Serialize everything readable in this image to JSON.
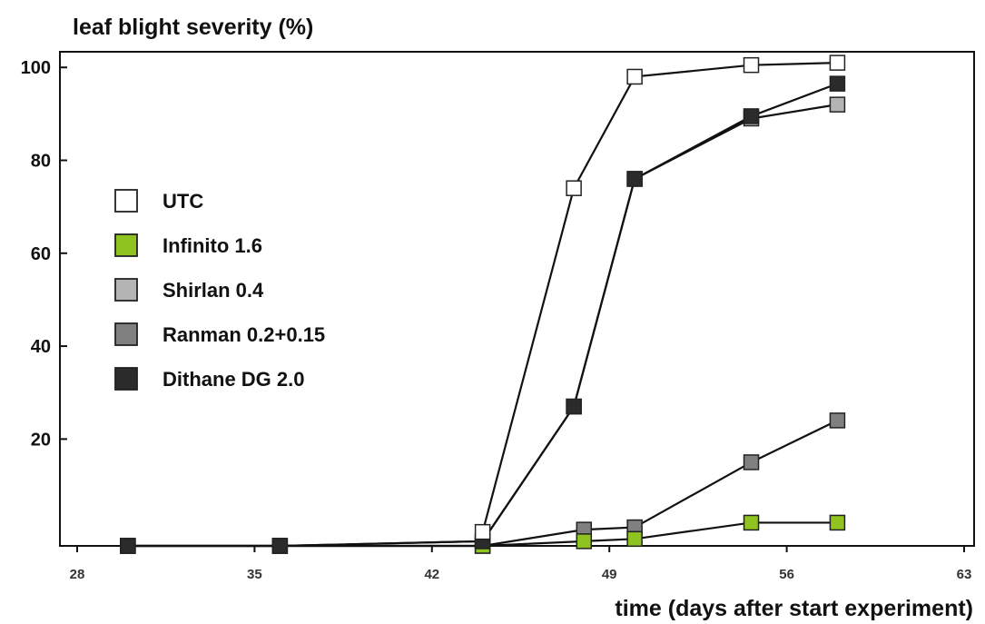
{
  "chart_data": {
    "type": "line",
    "ylabel": "leaf blight severity (%)",
    "xlabel": "time (days after start experiment)",
    "xlim": [
      28,
      63
    ],
    "ylim": [
      -3,
      102
    ],
    "x_ticks": [
      "28",
      "35",
      "42",
      "49",
      "56",
      "63"
    ],
    "y_ticks": [
      "20",
      "40",
      "60",
      "80",
      "100"
    ],
    "grid": false,
    "legend_position": "left-middle",
    "series": [
      {
        "name": "Ranman 0.2+0.15",
        "color": "#808080",
        "points": [
          [
            30,
            -3
          ],
          [
            36,
            -3
          ],
          [
            44,
            -3
          ],
          [
            48,
            0.5
          ],
          [
            50,
            1
          ],
          [
            54.6,
            15
          ],
          [
            58,
            24
          ]
        ]
      },
      {
        "name": "Infinito 1.6",
        "color": "#8fc31f",
        "points": [
          [
            30,
            -3
          ],
          [
            36,
            -3
          ],
          [
            44,
            -3
          ],
          [
            48,
            -2
          ],
          [
            50,
            -1.5
          ],
          [
            54.6,
            2
          ],
          [
            58,
            2
          ]
        ]
      },
      {
        "name": "Shirlan 0.4",
        "color": "#b4b4b4",
        "points": [
          [
            30,
            -3
          ],
          [
            36,
            -3
          ],
          [
            44,
            -2
          ],
          [
            47.6,
            27
          ],
          [
            50,
            76
          ],
          [
            54.6,
            89
          ],
          [
            58,
            92
          ]
        ]
      },
      {
        "name": "Dithane DG 2.0",
        "color": "#2b2b2b",
        "points": [
          [
            30,
            -3
          ],
          [
            36,
            -3
          ],
          [
            44,
            -2
          ],
          [
            47.6,
            27
          ],
          [
            50,
            76
          ],
          [
            54.6,
            89.5
          ],
          [
            58,
            96.5
          ]
        ]
      },
      {
        "name": "UTC",
        "color": "#ffffff",
        "points": [
          [
            44,
            0
          ],
          [
            47.6,
            74
          ],
          [
            50,
            98
          ],
          [
            54.6,
            100.5
          ],
          [
            58,
            101
          ]
        ]
      }
    ],
    "legend_order": [
      "UTC",
      "Infinito 1.6",
      "Shirlan 0.4",
      "Ranman 0.2+0.15",
      "Dithane DG 2.0"
    ]
  }
}
